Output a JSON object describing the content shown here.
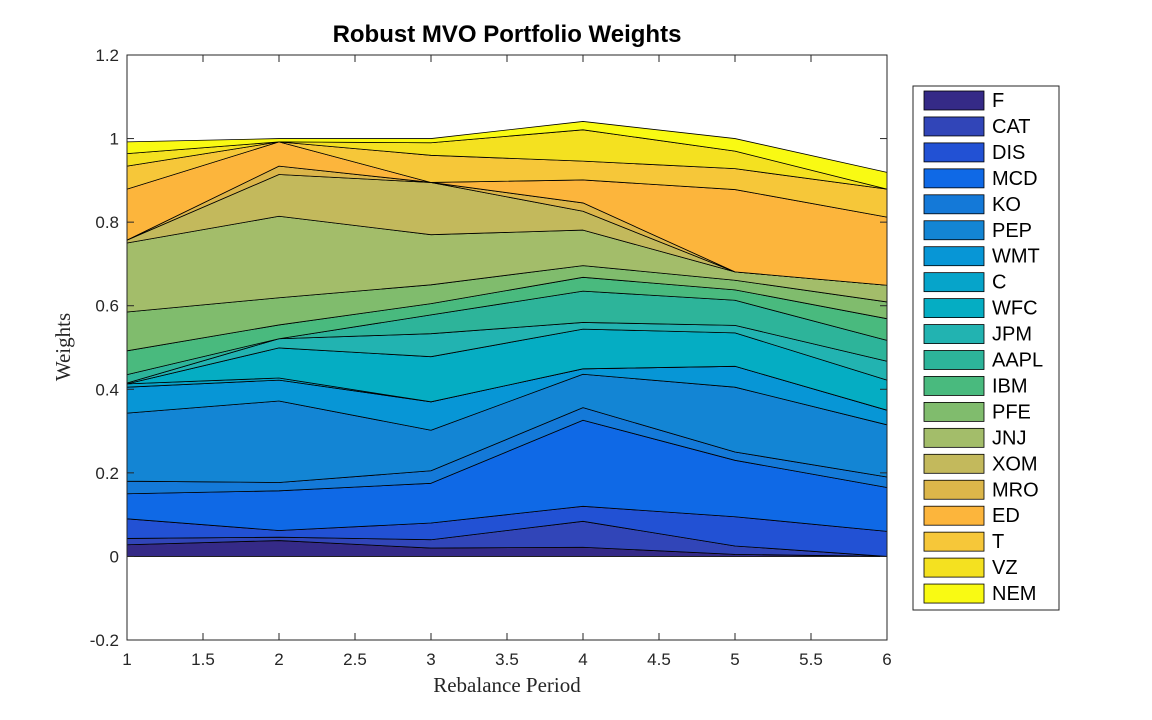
{
  "chart_data": {
    "type": "area",
    "title": "Robust MVO Portfolio Weights",
    "xlabel": "Rebalance Period",
    "ylabel": "Weights",
    "xlim": [
      1,
      6
    ],
    "ylim": [
      -0.2,
      1.2
    ],
    "x": [
      1,
      2,
      3,
      4,
      5,
      6
    ],
    "x_ticks": [
      "1",
      "1.5",
      "2",
      "2.5",
      "3",
      "3.5",
      "4",
      "4.5",
      "5",
      "5.5",
      "6"
    ],
    "y_ticks": [
      "-0.2",
      "0",
      "0.2",
      "0.4",
      "0.6",
      "0.8",
      "1",
      "1.2"
    ],
    "legend_position": "right-outside",
    "grid": false,
    "series": [
      {
        "name": "F",
        "color": "#352a87",
        "values": [
          0.028,
          0.038,
          0.02,
          0.022,
          0.005,
          0.0
        ]
      },
      {
        "name": "CAT",
        "color": "#3145b8",
        "values": [
          0.015,
          0.008,
          0.02,
          0.062,
          0.02,
          0.0
        ]
      },
      {
        "name": "DIS",
        "color": "#2251d4",
        "values": [
          0.047,
          0.016,
          0.04,
          0.036,
          0.07,
          0.06
        ]
      },
      {
        "name": "MCD",
        "color": "#0f69e6",
        "values": [
          0.06,
          0.095,
          0.095,
          0.206,
          0.135,
          0.105
        ]
      },
      {
        "name": "KO",
        "color": "#1479d8",
        "values": [
          0.03,
          0.02,
          0.03,
          0.03,
          0.02,
          0.025
        ]
      },
      {
        "name": "PEP",
        "color": "#1385d4",
        "values": [
          0.163,
          0.195,
          0.097,
          0.08,
          0.155,
          0.125
        ]
      },
      {
        "name": "WMT",
        "color": "#0796d6",
        "values": [
          0.062,
          0.05,
          0.068,
          0.013,
          0.05,
          0.035
        ]
      },
      {
        "name": "C",
        "color": "#06a4ca",
        "values": [
          0.008,
          0.005,
          0.0,
          0.0,
          0.0,
          0.0
        ]
      },
      {
        "name": "WFC",
        "color": "#05adc3",
        "values": [
          0.0,
          0.072,
          0.108,
          0.095,
          0.08,
          0.072
        ]
      },
      {
        "name": "JPM",
        "color": "#22b3b1",
        "values": [
          0.002,
          0.022,
          0.055,
          0.016,
          0.018,
          0.045
        ]
      },
      {
        "name": "AAPL",
        "color": "#2db49a",
        "values": [
          0.02,
          0.0,
          0.045,
          0.075,
          0.06,
          0.05
        ]
      },
      {
        "name": "IBM",
        "color": "#49ba7e",
        "values": [
          0.057,
          0.033,
          0.027,
          0.033,
          0.025,
          0.052
        ]
      },
      {
        "name": "PFE",
        "color": "#80bc6d",
        "values": [
          0.093,
          0.065,
          0.045,
          0.028,
          0.023,
          0.04
        ]
      },
      {
        "name": "JNJ",
        "color": "#a3bd6a",
        "values": [
          0.165,
          0.195,
          0.12,
          0.085,
          0.02,
          0.04
        ]
      },
      {
        "name": "XOM",
        "color": "#c3b95c",
        "values": [
          0.007,
          0.1,
          0.125,
          0.045,
          0.0,
          0.0
        ]
      },
      {
        "name": "MRO",
        "color": "#dcb64a",
        "values": [
          0.0,
          0.02,
          0.0,
          0.02,
          0.0,
          0.0
        ]
      },
      {
        "name": "ED",
        "color": "#fcb53c",
        "values": [
          0.122,
          0.058,
          0.0,
          0.055,
          0.197,
          0.163
        ]
      },
      {
        "name": "T",
        "color": "#f6c739",
        "values": [
          0.055,
          0.0,
          0.065,
          0.045,
          0.05,
          0.067
        ]
      },
      {
        "name": "VZ",
        "color": "#f4e120",
        "values": [
          0.03,
          0.0,
          0.03,
          0.075,
          0.042,
          0.0
        ]
      },
      {
        "name": "NEM",
        "color": "#f9fa13",
        "values": [
          0.028,
          0.008,
          0.01,
          0.02,
          0.03,
          0.04
        ]
      }
    ]
  }
}
